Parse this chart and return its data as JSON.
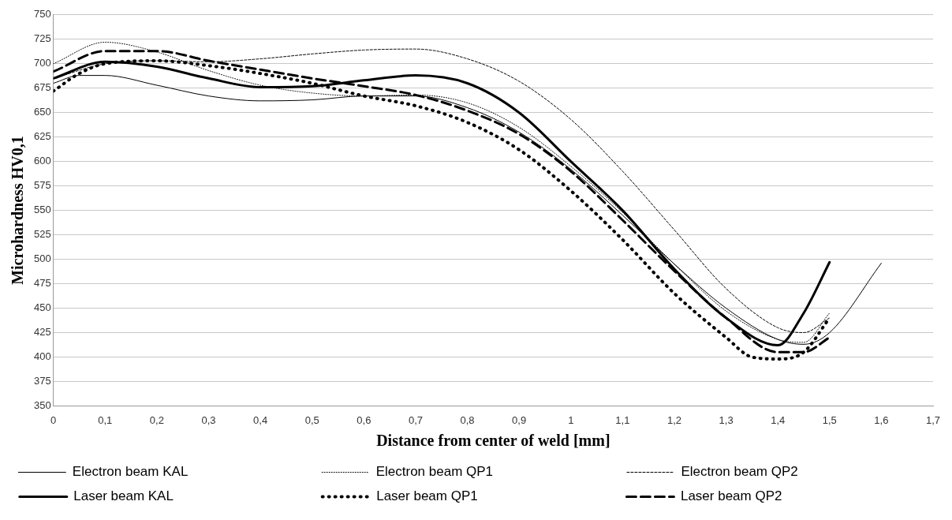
{
  "chart_data": {
    "type": "line",
    "xlabel": "Distance from center of weld [mm]",
    "ylabel": "Microhardness HV0,1",
    "xlim": [
      0,
      1.7
    ],
    "xticks": [
      0,
      {
        "value": 0.1,
        "label": "0,1"
      },
      {
        "value": 0.2,
        "label": "0,2"
      },
      {
        "value": 0.3,
        "label": "0,3"
      },
      {
        "value": 0.4,
        "label": "0,4"
      },
      {
        "value": 0.5,
        "label": "0,5"
      },
      {
        "value": 0.6,
        "label": "0,6"
      },
      {
        "value": 0.7,
        "label": "0,7"
      },
      {
        "value": 0.8,
        "label": "0,8"
      },
      {
        "value": 0.9,
        "label": "0,9"
      },
      1,
      {
        "value": 1.1,
        "label": "1,1"
      },
      {
        "value": 1.2,
        "label": "1,2"
      },
      {
        "value": 1.3,
        "label": "1,3"
      },
      {
        "value": 1.4,
        "label": "1,4"
      },
      {
        "value": 1.5,
        "label": "1,5"
      },
      {
        "value": 1.6,
        "label": "1,6"
      },
      {
        "value": 1.7,
        "label": "1,7"
      }
    ],
    "ylim": [
      350,
      750
    ],
    "yticks": [
      350,
      375,
      400,
      425,
      450,
      475,
      500,
      525,
      550,
      575,
      600,
      625,
      650,
      675,
      700,
      725,
      750
    ],
    "grid": "y",
    "legend": "bottom",
    "marker": "none",
    "series": [
      {
        "name": "Electron beam KAL",
        "color": "#000000",
        "line_style": "solid",
        "x": [
          0,
          0.05,
          0.1,
          0.2,
          0.3,
          0.4,
          0.5,
          0.6,
          0.7,
          0.8,
          0.9,
          1.0,
          1.1,
          1.2,
          1.3,
          1.4,
          1.45,
          1.5,
          1.6
        ],
        "values": [
          680,
          688,
          688,
          678,
          667,
          662,
          663,
          667,
          667,
          655,
          630,
          592,
          545,
          495,
          450,
          418,
          413,
          425,
          496
        ]
      },
      {
        "name": "Electron beam QP1",
        "color": "#000000",
        "line_style": "dotted",
        "x": [
          0,
          0.1,
          0.2,
          0.3,
          0.4,
          0.5,
          0.6,
          0.7,
          0.8,
          0.9,
          1.0,
          1.1,
          1.2,
          1.3,
          1.4,
          1.45,
          1.5
        ],
        "values": [
          700,
          722,
          712,
          693,
          678,
          670,
          667,
          668,
          660,
          635,
          595,
          548,
          495,
          447,
          418,
          415,
          445
        ]
      },
      {
        "name": "Electron beam QP2",
        "color": "#000000",
        "line_style": "dashed",
        "x": [
          0,
          0.1,
          0.2,
          0.3,
          0.4,
          0.5,
          0.6,
          0.7,
          0.8,
          0.9,
          1.0,
          1.1,
          1.2,
          1.3,
          1.4,
          1.45,
          1.5
        ],
        "values": [
          685,
          700,
          703,
          702,
          705,
          710,
          714,
          715,
          705,
          682,
          643,
          590,
          530,
          470,
          430,
          425,
          440
        ]
      },
      {
        "name": "Laser beam KAL",
        "color": "#000000",
        "line_style": "solid",
        "x": [
          0,
          0.1,
          0.2,
          0.3,
          0.4,
          0.5,
          0.6,
          0.7,
          0.8,
          0.9,
          1.0,
          1.1,
          1.2,
          1.3,
          1.4,
          1.45,
          1.5
        ],
        "values": [
          685,
          702,
          697,
          685,
          676,
          677,
          683,
          688,
          680,
          650,
          600,
          550,
          490,
          440,
          412,
          445,
          497
        ]
      },
      {
        "name": "Laser beam QP1",
        "color": "#000000",
        "line_style": "dotted",
        "x": [
          0,
          0.05,
          0.1,
          0.2,
          0.3,
          0.4,
          0.5,
          0.6,
          0.7,
          0.8,
          0.9,
          1.0,
          1.1,
          1.2,
          1.3,
          1.35,
          1.4,
          1.45,
          1.5
        ],
        "values": [
          672,
          690,
          700,
          703,
          698,
          690,
          680,
          667,
          657,
          640,
          612,
          570,
          520,
          465,
          420,
          400,
          398,
          405,
          440
        ]
      },
      {
        "name": "Laser beam QP2",
        "color": "#000000",
        "line_style": "dashed",
        "x": [
          0,
          0.1,
          0.2,
          0.3,
          0.4,
          0.5,
          0.6,
          0.7,
          0.8,
          0.9,
          1.0,
          1.1,
          1.2,
          1.3,
          1.4,
          1.45,
          1.5
        ],
        "values": [
          692,
          713,
          713,
          703,
          694,
          685,
          677,
          668,
          652,
          628,
          590,
          540,
          488,
          440,
          405,
          405,
          420
        ]
      }
    ]
  }
}
